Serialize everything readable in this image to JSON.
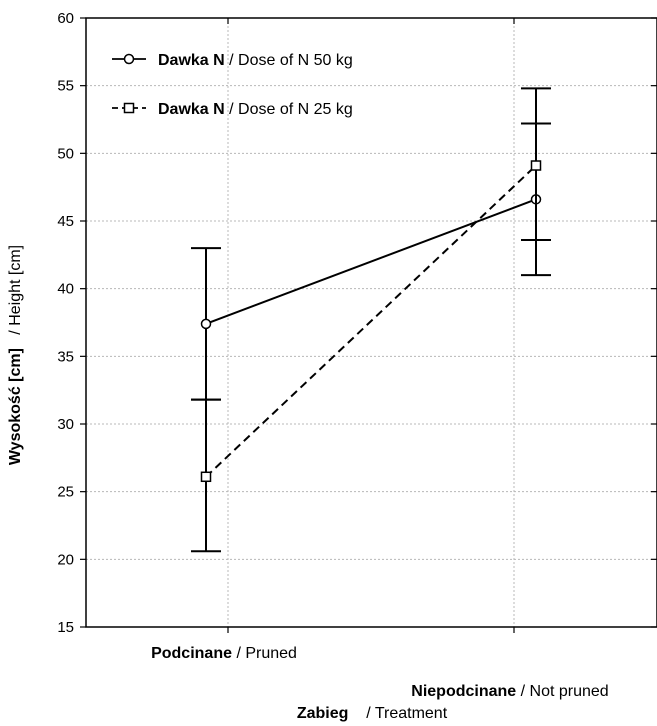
{
  "chart_data": {
    "type": "line",
    "xlabel": {
      "bold": "Zabieg",
      "normal": "/ Treatment"
    },
    "ylabel": {
      "bold": "Wysokość [cm]",
      "normal": "/ Height [cm]"
    },
    "ylim": [
      15,
      60
    ],
    "yticks": [
      15,
      20,
      25,
      30,
      35,
      40,
      45,
      50,
      55,
      60
    ],
    "categories": [
      {
        "bold": "Podcinane",
        "normal": "/ Pruned"
      },
      {
        "bold": "Niepodcinane",
        "normal": "/ Not pruned"
      }
    ],
    "grid": true,
    "legend_position": "top-left",
    "series": [
      {
        "legend_bold": "Dawka N",
        "legend_normal": "/ Dose of N 50 kg",
        "marker": "circle",
        "line_style": "solid",
        "values": [
          37.4,
          46.6
        ],
        "err_low": [
          31.8,
          41.0
        ],
        "err_high": [
          43.0,
          52.2
        ]
      },
      {
        "legend_bold": "Dawka N",
        "legend_normal": "/ Dose of N 25 kg",
        "marker": "square",
        "line_style": "dashed",
        "values": [
          26.1,
          49.1
        ],
        "err_low": [
          20.6,
          43.6
        ],
        "err_high": [
          31.8,
          54.8
        ]
      }
    ]
  }
}
